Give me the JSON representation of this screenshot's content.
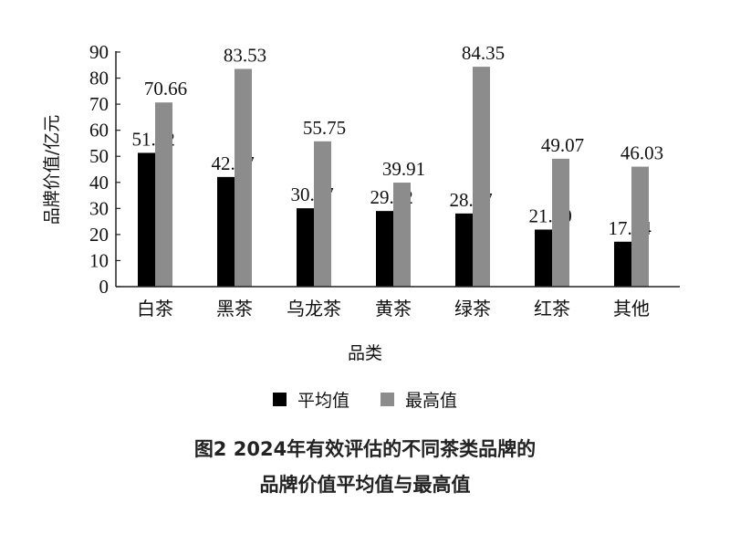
{
  "chart_data": {
    "type": "bar",
    "title": "图2 2024年有效评估的不同茶类品牌的品牌价值平均值与最高值",
    "xlabel": "品类",
    "ylabel": "品牌价值/亿元",
    "ylim": [
      0,
      90
    ],
    "yticks": [
      0,
      10,
      20,
      30,
      40,
      50,
      60,
      70,
      80,
      90
    ],
    "grid": false,
    "legend_position": "bottom",
    "categories": [
      "白茶",
      "黑茶",
      "乌龙茶",
      "黄茶",
      "绿茶",
      "红茶",
      "其他"
    ],
    "series": [
      {
        "name": "平均值",
        "color": "#000000",
        "values": [
          51.32,
          42.07,
          30.07,
          29.02,
          28.07,
          21.9,
          17.24
        ],
        "labels": [
          "51.32",
          "42.07",
          "30.07",
          "29.02",
          "28.07",
          "21.90",
          "17.24"
        ]
      },
      {
        "name": "最高值",
        "color": "#8c8c8c",
        "values": [
          70.66,
          83.53,
          55.75,
          39.91,
          84.35,
          49.07,
          46.03
        ],
        "labels": [
          "70.66",
          "83.53",
          "55.75",
          "39.91",
          "84.35",
          "49.07",
          "46.03"
        ]
      }
    ]
  },
  "axes": {
    "xlabel": "品类",
    "ylabel": "品牌价值/亿元"
  },
  "legend": {
    "items": [
      {
        "label": "平均值",
        "color": "#000000"
      },
      {
        "label": "最高值",
        "color": "#8c8c8c"
      }
    ]
  },
  "caption": {
    "line1": "图2  2024年有效评估的不同茶类品牌的",
    "line2": "品牌价值平均值与最高值"
  }
}
